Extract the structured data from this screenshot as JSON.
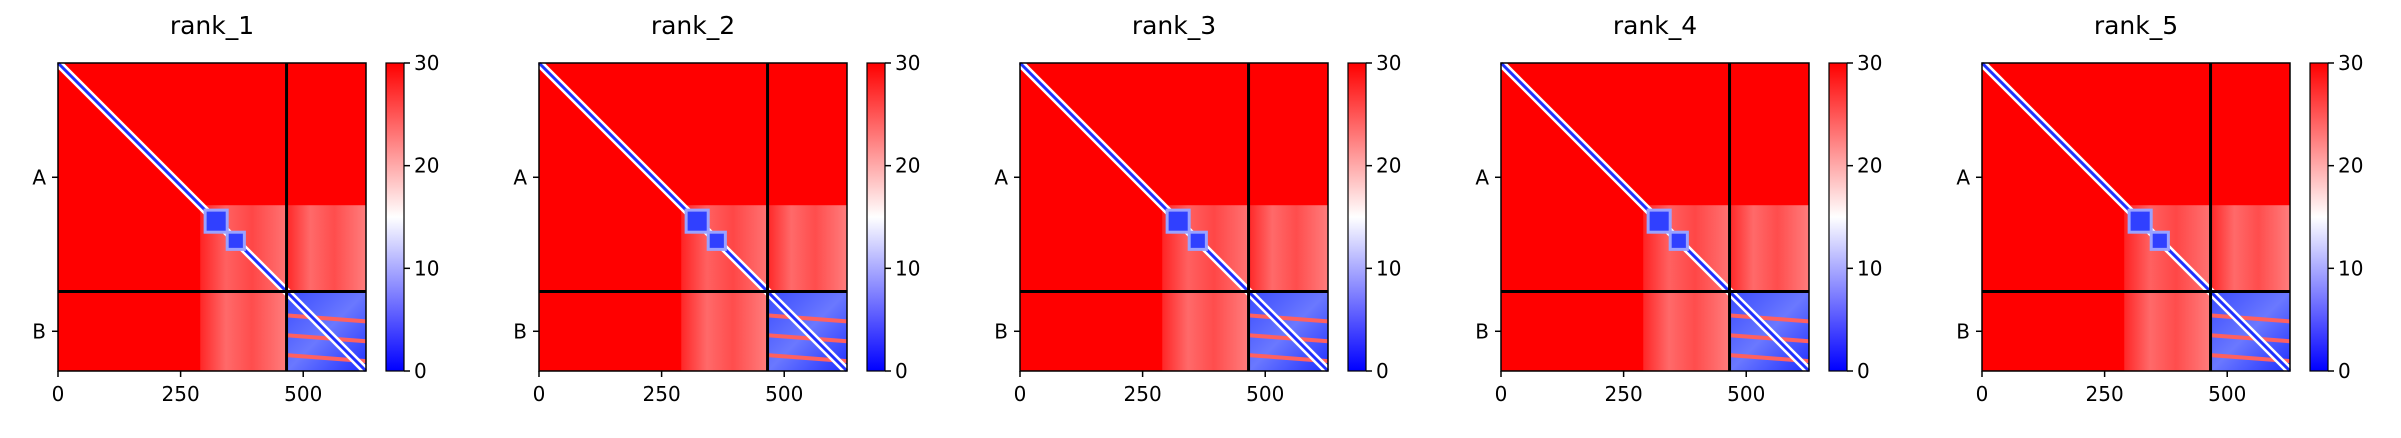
{
  "chart_data": [
    {
      "type": "heatmap",
      "title": "rank_1",
      "xlim": [
        0,
        628
      ],
      "xticks": [
        0,
        250,
        500
      ],
      "ylim": [
        628,
        0
      ],
      "yticks": [
        {
          "value": 233,
          "label": "A"
        },
        {
          "value": 547,
          "label": "B"
        }
      ],
      "chain_boundary": 466,
      "colorbar": {
        "lim": [
          0,
          30
        ],
        "ticks": [
          0,
          10,
          20,
          30
        ],
        "colors": [
          "#0000ff",
          "#ffffff",
          "#ff0000"
        ]
      }
    },
    {
      "type": "heatmap",
      "title": "rank_2",
      "xlim": [
        0,
        628
      ],
      "xticks": [
        0,
        250,
        500
      ],
      "ylim": [
        628,
        0
      ],
      "yticks": [
        {
          "value": 233,
          "label": "A"
        },
        {
          "value": 547,
          "label": "B"
        }
      ],
      "chain_boundary": 466,
      "colorbar": {
        "lim": [
          0,
          30
        ],
        "ticks": [
          0,
          10,
          20,
          30
        ],
        "colors": [
          "#0000ff",
          "#ffffff",
          "#ff0000"
        ]
      }
    },
    {
      "type": "heatmap",
      "title": "rank_3",
      "xlim": [
        0,
        628
      ],
      "xticks": [
        0,
        250,
        500
      ],
      "ylim": [
        628,
        0
      ],
      "yticks": [
        {
          "value": 233,
          "label": "A"
        },
        {
          "value": 547,
          "label": "B"
        }
      ],
      "chain_boundary": 466,
      "colorbar": {
        "lim": [
          0,
          30
        ],
        "ticks": [
          0,
          10,
          20,
          30
        ],
        "colors": [
          "#0000ff",
          "#ffffff",
          "#ff0000"
        ]
      }
    },
    {
      "type": "heatmap",
      "title": "rank_4",
      "xlim": [
        0,
        628
      ],
      "xticks": [
        0,
        250,
        500
      ],
      "ylim": [
        628,
        0
      ],
      "yticks": [
        {
          "value": 233,
          "label": "A"
        },
        {
          "value": 547,
          "label": "B"
        }
      ],
      "chain_boundary": 466,
      "colorbar": {
        "lim": [
          0,
          30
        ],
        "ticks": [
          0,
          10,
          20,
          30
        ],
        "colors": [
          "#0000ff",
          "#ffffff",
          "#ff0000"
        ]
      }
    },
    {
      "type": "heatmap",
      "title": "rank_5",
      "xlim": [
        0,
        628
      ],
      "xticks": [
        0,
        250,
        500
      ],
      "ylim": [
        628,
        0
      ],
      "yticks": [
        {
          "value": 233,
          "label": "A"
        },
        {
          "value": 547,
          "label": "B"
        }
      ],
      "chain_boundary": 466,
      "colorbar": {
        "lim": [
          0,
          30
        ],
        "ticks": [
          0,
          10,
          20,
          30
        ],
        "colors": [
          "#0000ff",
          "#ffffff",
          "#ff0000"
        ]
      }
    }
  ]
}
